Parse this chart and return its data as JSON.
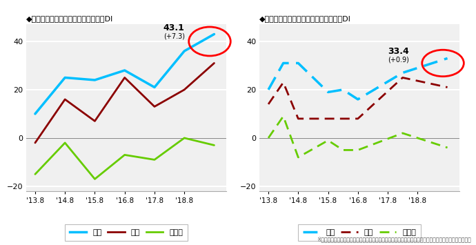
{
  "title1": "◆現在の土地取引状況の判断に関するDI",
  "title2": "◆１年後の土地取引状況の予想に関するDI",
  "xtick_labels": [
    "'13.8",
    "'14.8",
    "'15.8",
    "'16.8",
    "'17.8",
    "'18.8"
  ],
  "left_tokyo": [
    10,
    25,
    24,
    28,
    21,
    36,
    43
  ],
  "left_osaka": [
    -2,
    16,
    7,
    25,
    13,
    20,
    31
  ],
  "left_other": [
    -15,
    -2,
    -17,
    -7,
    -9,
    0,
    -3
  ],
  "right_tokyo": [
    20,
    31,
    31,
    19,
    20,
    16,
    27,
    33
  ],
  "right_osaka": [
    14,
    23,
    8,
    8,
    8,
    8,
    25,
    21
  ],
  "right_other": [
    0,
    9,
    -8,
    -1,
    -5,
    -5,
    2,
    -4
  ],
  "left_x": [
    0,
    1,
    2,
    3,
    4,
    5,
    6
  ],
  "right_x": [
    0,
    0.5,
    1,
    2,
    2.5,
    3,
    4.5,
    6
  ],
  "ylim": [
    -22,
    47
  ],
  "yticks": [
    -20,
    0,
    20,
    40
  ],
  "color_tokyo": "#00BFFF",
  "color_osaka": "#8B0000",
  "color_other": "#66CC00",
  "annotation1_val": "43.1",
  "annotation1_chg": "(+7.3)",
  "annotation2_val": "33.4",
  "annotation2_chg": "(+0.9)",
  "footnote": "※国土交通省「平成３０年度「土地取引動向調査（第１回調査）」」をもとに東急リバブル株式会社が作成",
  "legend1_tokyo": "東京",
  "legend1_osaka": "大阪",
  "legend1_other": "その他",
  "bg_color": "#F0F0F0"
}
